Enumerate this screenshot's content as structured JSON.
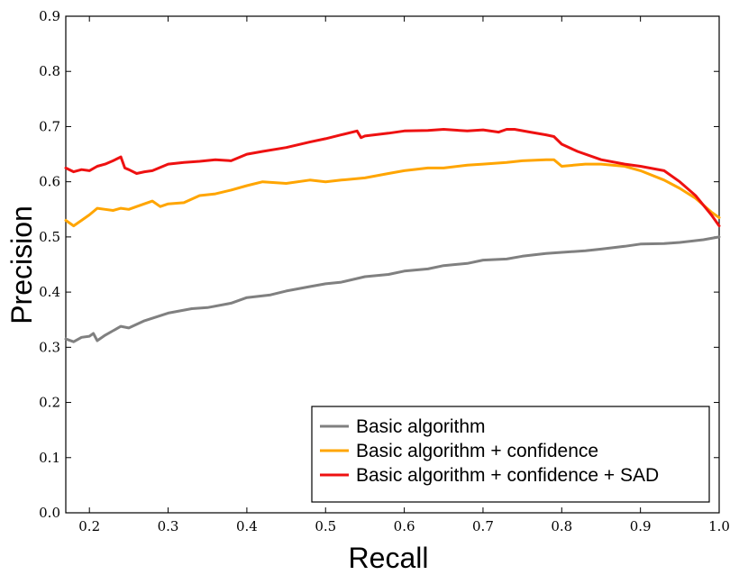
{
  "chart_data": {
    "type": "line",
    "xlabel": "Recall",
    "ylabel": "Precision",
    "xlim": [
      0.17,
      1.0
    ],
    "ylim": [
      0.0,
      0.9
    ],
    "xticks": [
      "0.2",
      "0.3",
      "0.4",
      "0.5",
      "0.6",
      "0.7",
      "0.8",
      "0.9",
      "1.0"
    ],
    "xtick_values": [
      0.2,
      0.3,
      0.4,
      0.5,
      0.6,
      0.7,
      0.8,
      0.9,
      1.0
    ],
    "yticks": [
      "0.0",
      "0.1",
      "0.2",
      "0.3",
      "0.4",
      "0.5",
      "0.6",
      "0.7",
      "0.8",
      "0.9"
    ],
    "ytick_values": [
      0.0,
      0.1,
      0.2,
      0.3,
      0.4,
      0.5,
      0.6,
      0.7,
      0.8,
      0.9
    ],
    "grid": false,
    "legend_position": "lower-right",
    "series": [
      {
        "name": "Basic algorithm",
        "color": "#808080",
        "x": [
          0.17,
          0.18,
          0.19,
          0.2,
          0.205,
          0.21,
          0.22,
          0.23,
          0.24,
          0.25,
          0.27,
          0.3,
          0.33,
          0.35,
          0.38,
          0.4,
          0.43,
          0.45,
          0.48,
          0.5,
          0.52,
          0.55,
          0.58,
          0.6,
          0.63,
          0.65,
          0.68,
          0.7,
          0.73,
          0.75,
          0.78,
          0.8,
          0.83,
          0.85,
          0.88,
          0.9,
          0.93,
          0.95,
          0.98,
          1.0
        ],
        "y": [
          0.315,
          0.31,
          0.318,
          0.32,
          0.325,
          0.312,
          0.322,
          0.33,
          0.338,
          0.335,
          0.348,
          0.362,
          0.37,
          0.372,
          0.38,
          0.39,
          0.395,
          0.402,
          0.41,
          0.415,
          0.418,
          0.428,
          0.432,
          0.438,
          0.442,
          0.448,
          0.452,
          0.458,
          0.46,
          0.465,
          0.47,
          0.472,
          0.475,
          0.478,
          0.483,
          0.487,
          0.488,
          0.49,
          0.495,
          0.5
        ]
      },
      {
        "name": "Basic algorithm + confidence",
        "color": "#ffa500",
        "x": [
          0.17,
          0.18,
          0.19,
          0.2,
          0.21,
          0.22,
          0.23,
          0.24,
          0.25,
          0.26,
          0.28,
          0.29,
          0.3,
          0.32,
          0.34,
          0.36,
          0.38,
          0.4,
          0.42,
          0.45,
          0.48,
          0.5,
          0.52,
          0.55,
          0.58,
          0.6,
          0.63,
          0.65,
          0.68,
          0.7,
          0.73,
          0.75,
          0.78,
          0.79,
          0.8,
          0.83,
          0.85,
          0.88,
          0.9,
          0.93,
          0.95,
          0.97,
          0.99,
          1.0
        ],
        "y": [
          0.53,
          0.52,
          0.53,
          0.54,
          0.552,
          0.55,
          0.548,
          0.552,
          0.55,
          0.555,
          0.565,
          0.555,
          0.56,
          0.562,
          0.575,
          0.578,
          0.585,
          0.593,
          0.6,
          0.597,
          0.603,
          0.6,
          0.603,
          0.607,
          0.615,
          0.62,
          0.625,
          0.625,
          0.63,
          0.632,
          0.635,
          0.638,
          0.64,
          0.64,
          0.628,
          0.632,
          0.632,
          0.628,
          0.62,
          0.603,
          0.588,
          0.57,
          0.545,
          0.535
        ]
      },
      {
        "name": "Basic algorithm + confidence + SAD",
        "color": "#ee1111",
        "x": [
          0.17,
          0.18,
          0.19,
          0.2,
          0.21,
          0.22,
          0.23,
          0.24,
          0.245,
          0.25,
          0.26,
          0.27,
          0.28,
          0.3,
          0.32,
          0.34,
          0.36,
          0.38,
          0.4,
          0.42,
          0.45,
          0.48,
          0.5,
          0.52,
          0.54,
          0.545,
          0.55,
          0.58,
          0.6,
          0.63,
          0.65,
          0.68,
          0.7,
          0.72,
          0.73,
          0.74,
          0.76,
          0.78,
          0.79,
          0.8,
          0.82,
          0.85,
          0.88,
          0.9,
          0.93,
          0.95,
          0.97,
          0.99,
          1.0
        ],
        "y": [
          0.625,
          0.618,
          0.622,
          0.62,
          0.628,
          0.632,
          0.638,
          0.645,
          0.625,
          0.622,
          0.615,
          0.618,
          0.62,
          0.632,
          0.635,
          0.637,
          0.64,
          0.638,
          0.65,
          0.655,
          0.662,
          0.672,
          0.678,
          0.685,
          0.692,
          0.68,
          0.683,
          0.688,
          0.692,
          0.693,
          0.695,
          0.692,
          0.694,
          0.69,
          0.695,
          0.695,
          0.69,
          0.685,
          0.682,
          0.668,
          0.655,
          0.64,
          0.632,
          0.628,
          0.62,
          0.6,
          0.575,
          0.54,
          0.52
        ]
      }
    ]
  }
}
